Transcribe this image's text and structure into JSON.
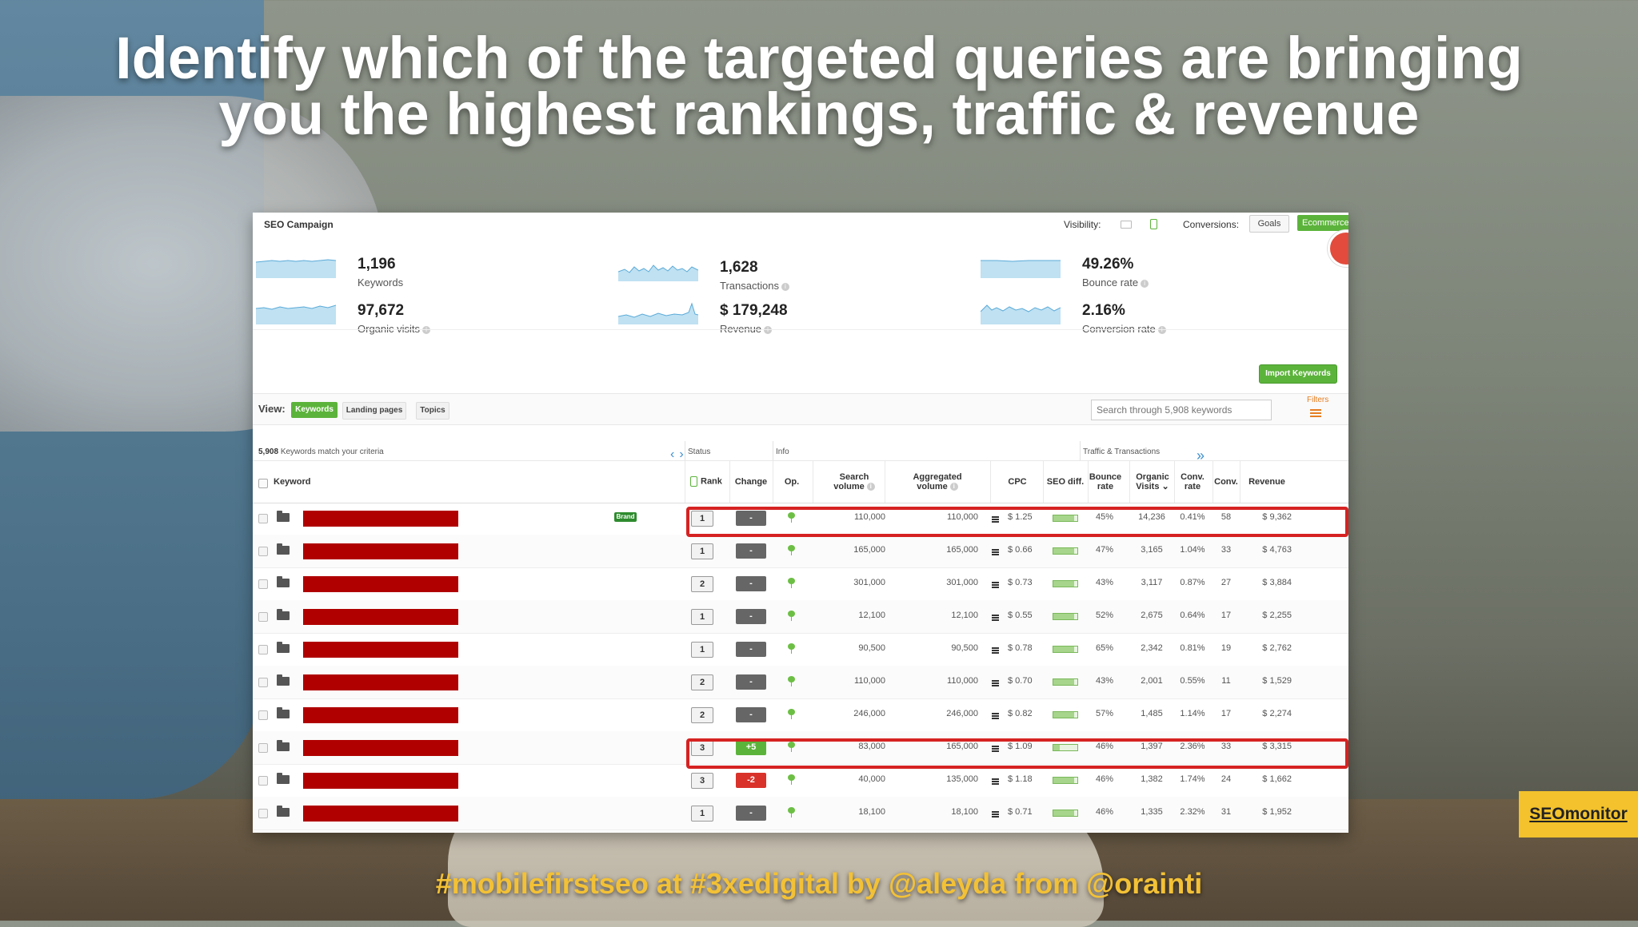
{
  "slide": {
    "headline_line1": "Identify which of the targeted queries are bringing",
    "headline_line2": "you the highest rankings, traffic & revenue",
    "footer": "#mobilefirstseo at #3xedigital by @aleyda from @orainti",
    "brand_badge": "SEOmonitor"
  },
  "app": {
    "title": "SEO Campaign",
    "visibility_label": "Visibility:",
    "conversions_label": "Conversions:",
    "goals_label": "Goals",
    "ecommerce_label": "Ecommerce"
  },
  "stats": [
    {
      "value": "1,196",
      "label": "Keywords"
    },
    {
      "value": "1,628",
      "label": "Transactions"
    },
    {
      "value": "49.26%",
      "label": "Bounce rate"
    },
    {
      "value": "97,672",
      "label": "Organic visits"
    },
    {
      "value": "$ 179,248",
      "label": "Revenue"
    },
    {
      "value": "2.16%",
      "label": "Conversion rate"
    }
  ],
  "import_button": "Import Keywords",
  "view": {
    "label": "View:",
    "tabs": [
      "Keywords",
      "Landing pages",
      "Topics"
    ],
    "active_tab": "Keywords",
    "search_placeholder": "Search through 5,908 keywords",
    "filters_label": "Filters"
  },
  "table": {
    "match_count": "5,908",
    "match_text": "Keywords match your criteria",
    "groups": {
      "status": "Status",
      "info": "Info",
      "traffic": "Traffic & Transactions"
    },
    "headers": {
      "keyword": "Keyword",
      "rank": "Rank",
      "change": "Change",
      "op": "Op.",
      "search_volume_1": "Search",
      "search_volume_2": "volume",
      "agg_volume_1": "Aggregated",
      "agg_volume_2": "volume",
      "cpc": "CPC",
      "seo_diff": "SEO diff.",
      "bounce_1": "Bounce",
      "bounce_2": "rate",
      "organic_1": "Organic",
      "organic_2": "Visits",
      "convrate_1": "Conv.",
      "convrate_2": "rate",
      "conv": "Conv.",
      "revenue": "Revenue"
    },
    "brand_tag": "Brand",
    "rows": [
      {
        "rank": "1",
        "change": "-",
        "change_state": "none",
        "search": "110,000",
        "agg": "110,000",
        "cpc": "$ 1.25",
        "seo_diff": 0.85,
        "bounce": "45%",
        "organic": "14,236",
        "conv_rate": "0.41%",
        "conv": "58",
        "revenue": "$ 9,362",
        "brand": true
      },
      {
        "rank": "1",
        "change": "-",
        "change_state": "none",
        "search": "165,000",
        "agg": "165,000",
        "cpc": "$ 0.66",
        "seo_diff": 0.85,
        "bounce": "47%",
        "organic": "3,165",
        "conv_rate": "1.04%",
        "conv": "33",
        "revenue": "$ 4,763"
      },
      {
        "rank": "2",
        "change": "-",
        "change_state": "none",
        "search": "301,000",
        "agg": "301,000",
        "cpc": "$ 0.73",
        "seo_diff": 0.85,
        "bounce": "43%",
        "organic": "3,117",
        "conv_rate": "0.87%",
        "conv": "27",
        "revenue": "$ 3,884"
      },
      {
        "rank": "1",
        "change": "-",
        "change_state": "none",
        "search": "12,100",
        "agg": "12,100",
        "cpc": "$ 0.55",
        "seo_diff": 0.85,
        "bounce": "52%",
        "organic": "2,675",
        "conv_rate": "0.64%",
        "conv": "17",
        "revenue": "$ 2,255"
      },
      {
        "rank": "1",
        "change": "-",
        "change_state": "none",
        "search": "90,500",
        "agg": "90,500",
        "cpc": "$ 0.78",
        "seo_diff": 0.85,
        "bounce": "65%",
        "organic": "2,342",
        "conv_rate": "0.81%",
        "conv": "19",
        "revenue": "$ 2,762"
      },
      {
        "rank": "2",
        "change": "-",
        "change_state": "none",
        "search": "110,000",
        "agg": "110,000",
        "cpc": "$ 0.70",
        "seo_diff": 0.85,
        "bounce": "43%",
        "organic": "2,001",
        "conv_rate": "0.55%",
        "conv": "11",
        "revenue": "$ 1,529"
      },
      {
        "rank": "2",
        "change": "-",
        "change_state": "none",
        "search": "246,000",
        "agg": "246,000",
        "cpc": "$ 0.82",
        "seo_diff": 0.85,
        "bounce": "57%",
        "organic": "1,485",
        "conv_rate": "1.14%",
        "conv": "17",
        "revenue": "$ 2,274"
      },
      {
        "rank": "3",
        "change": "+5",
        "change_state": "up",
        "search": "83,000",
        "agg": "165,000",
        "cpc": "$ 1.09",
        "seo_diff": 0.25,
        "bounce": "46%",
        "organic": "1,397",
        "conv_rate": "2.36%",
        "conv": "33",
        "revenue": "$ 3,315"
      },
      {
        "rank": "3",
        "change": "-2",
        "change_state": "down",
        "search": "40,000",
        "agg": "135,000",
        "cpc": "$ 1.18",
        "seo_diff": 0.85,
        "bounce": "46%",
        "organic": "1,382",
        "conv_rate": "1.74%",
        "conv": "24",
        "revenue": "$ 1,662"
      },
      {
        "rank": "1",
        "change": "-",
        "change_state": "none",
        "search": "18,100",
        "agg": "18,100",
        "cpc": "$ 0.71",
        "seo_diff": 0.85,
        "bounce": "46%",
        "organic": "1,335",
        "conv_rate": "2.32%",
        "conv": "31",
        "revenue": "$ 1,952"
      }
    ]
  },
  "colors": {
    "accent_green": "#5cb33b",
    "highlight_red": "#d62222",
    "redaction_red": "#b00000",
    "headline": "#ffffff",
    "footer": "#f3c136",
    "badge": "#f3c22c"
  }
}
